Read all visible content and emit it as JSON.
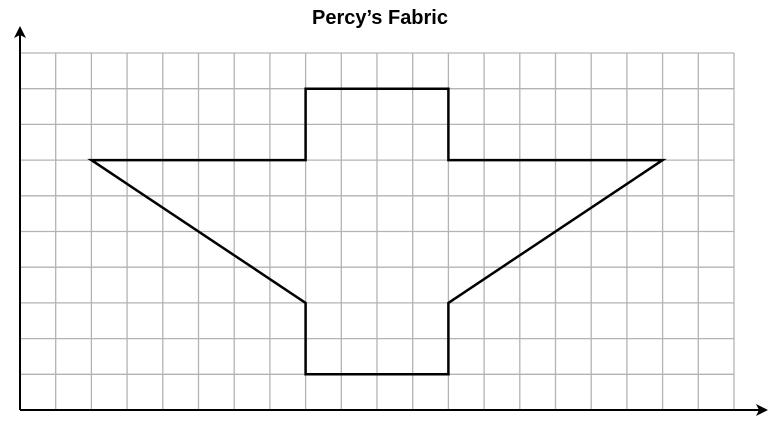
{
  "title": "Percy’s Fabric",
  "grid": {
    "columns": 20,
    "rows": 10,
    "line_color": "#b3b3b3"
  },
  "shape": {
    "stroke_color": "#000000",
    "vertices": [
      [
        2,
        7
      ],
      [
        8,
        7
      ],
      [
        8,
        9
      ],
      [
        12,
        9
      ],
      [
        12,
        7
      ],
      [
        18,
        7
      ],
      [
        12,
        3
      ],
      [
        12,
        1
      ],
      [
        8,
        1
      ],
      [
        8,
        3
      ]
    ]
  },
  "axes": {
    "color": "#000000",
    "x_arrow": true,
    "y_arrow": true
  }
}
